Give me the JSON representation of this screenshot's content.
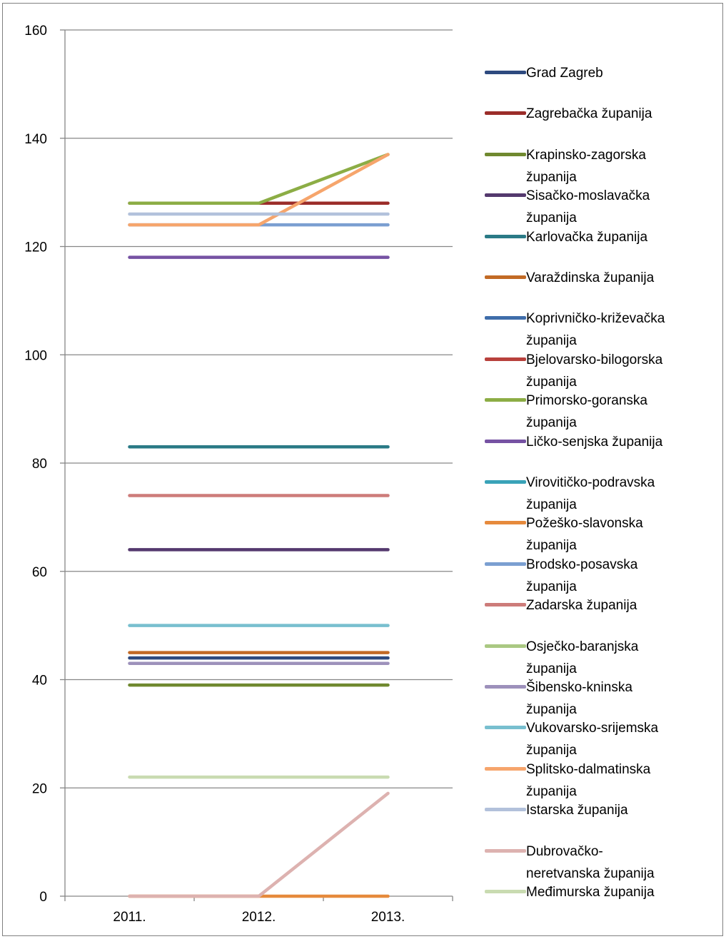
{
  "chart_data": {
    "type": "line",
    "title": "",
    "xlabel": "",
    "ylabel": "",
    "categories": [
      "2011.",
      "2012.",
      "2013."
    ],
    "ylim": [
      0,
      160
    ],
    "yticks": [
      0,
      20,
      40,
      60,
      80,
      100,
      120,
      140,
      160
    ],
    "grid": "horizontal",
    "legend_position": "right",
    "series": [
      {
        "name": "Grad Zagreb",
        "color": "#2e4a7f",
        "values": [
          44,
          44,
          44
        ]
      },
      {
        "name": "Zagrebačka županija",
        "color": "#9b2d2a",
        "values": [
          128,
          128,
          128
        ]
      },
      {
        "name": "Krapinsko-zagorska županija",
        "color": "#70892f",
        "values": [
          39,
          39,
          39
        ]
      },
      {
        "name": "Sisačko-moslavačka županija",
        "color": "#54396e",
        "values": [
          64,
          64,
          64
        ]
      },
      {
        "name": "Karlovačka županija",
        "color": "#2a7a86",
        "values": [
          83,
          83,
          83
        ]
      },
      {
        "name": "Varaždinska županija",
        "color": "#c26a25",
        "values": [
          45,
          45,
          45
        ]
      },
      {
        "name": "Koprivničko-križevačka županija",
        "color": "#3f6daa",
        "values": [
          null,
          null,
          null
        ]
      },
      {
        "name": "Bjelovarsko-bilogorska županija",
        "color": "#b8413c",
        "values": [
          null,
          null,
          null
        ]
      },
      {
        "name": "Primorsko-goranska županija",
        "color": "#8cad45",
        "values": [
          128,
          128,
          137
        ]
      },
      {
        "name": "Ličko-senjska županija",
        "color": "#7652a3",
        "values": [
          118,
          118,
          118
        ]
      },
      {
        "name": "Virovitičko-podravska županija",
        "color": "#3aa3b8",
        "values": [
          null,
          null,
          null
        ]
      },
      {
        "name": "Požeško-slavonska županija",
        "color": "#e68a3c",
        "values": [
          0,
          0,
          0
        ]
      },
      {
        "name": "Brodsko-posavska županija",
        "color": "#7b9fd1",
        "values": [
          124,
          124,
          124
        ]
      },
      {
        "name": "Zadarska županija",
        "color": "#cd7c7a",
        "values": [
          74,
          74,
          74
        ]
      },
      {
        "name": "Osječko-baranjska županija",
        "color": "#aac882",
        "values": [
          null,
          null,
          null
        ]
      },
      {
        "name": "Šibensko-kninska županija",
        "color": "#9d91bb",
        "values": [
          43,
          43,
          43
        ]
      },
      {
        "name": "Vukovarsko-srijemska županija",
        "color": "#78bfcf",
        "values": [
          50,
          50,
          50
        ]
      },
      {
        "name": "Splitsko-dalmatinska županija",
        "color": "#f6a56c",
        "values": [
          124,
          124,
          137
        ]
      },
      {
        "name": "Istarska županija",
        "color": "#b2c1db",
        "values": [
          126,
          126,
          126
        ]
      },
      {
        "name": "Dubrovačko-neretvanska županija",
        "color": "#ddb2b0",
        "values": [
          0,
          0,
          19
        ]
      },
      {
        "name": "Međimurska županija",
        "color": "#c9dbb1",
        "values": [
          22,
          22,
          22
        ]
      }
    ]
  },
  "legend_lines": [
    [
      "Grad Zagreb"
    ],
    [
      "Zagrebačka županija"
    ],
    [
      "Krapinsko-zagorska",
      "županija"
    ],
    [
      "Sisačko-moslavačka",
      "županija"
    ],
    [
      "Karlovačka županija"
    ],
    [
      "Varaždinska županija"
    ],
    [
      "Koprivničko-križevačka",
      "županija"
    ],
    [
      "Bjelovarsko-bilogorska",
      "županija"
    ],
    [
      "Primorsko-goranska",
      "županija"
    ],
    [
      "Ličko-senjska županija"
    ],
    [
      "Virovitičko-podravska",
      "županija"
    ],
    [
      "Požeško-slavonska",
      "županija"
    ],
    [
      "Brodsko-posavska",
      "županija"
    ],
    [
      "Zadarska županija"
    ],
    [
      "Osječko-baranjska",
      "županija"
    ],
    [
      "Šibensko-kninska",
      "županija"
    ],
    [
      "Vukovarsko-srijemska",
      "županija"
    ],
    [
      "Splitsko-dalmatinska",
      "županija"
    ],
    [
      "Istarska županija"
    ],
    [
      "Dubrovačko-",
      "neretvanska županija"
    ],
    [
      "Međimurska županija"
    ]
  ]
}
